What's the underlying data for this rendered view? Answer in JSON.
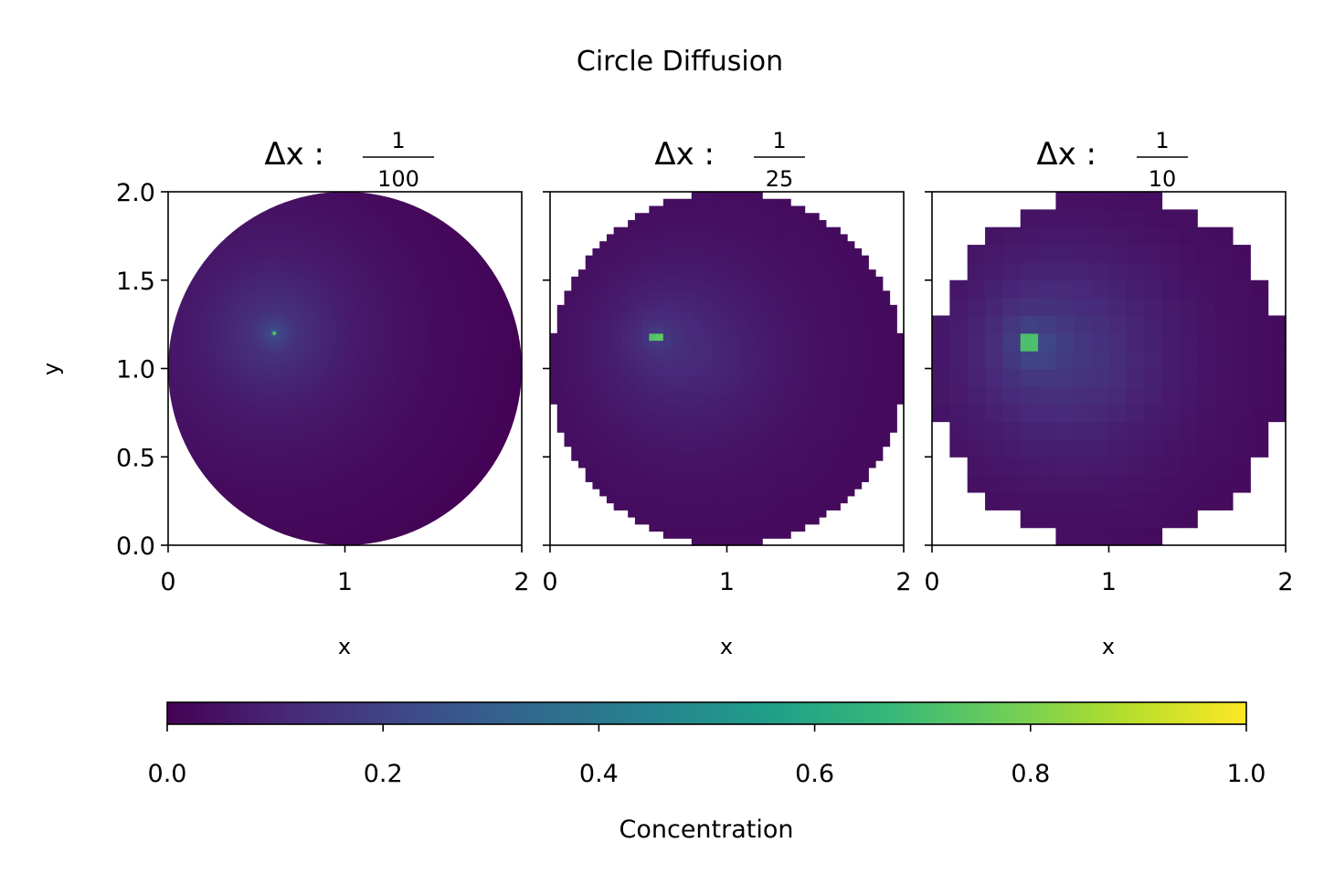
{
  "figure": {
    "title": "Circle Diffusion"
  },
  "chart_data": [
    {
      "type": "heatmap",
      "title": {
        "prefix": "Δx : ",
        "numerator": "1",
        "denominator": "100"
      },
      "dx": 0.01,
      "xlabel": "x",
      "ylabel": "y",
      "xlim": [
        0,
        2
      ],
      "ylim": [
        0,
        2
      ],
      "xticks": [
        "0",
        "1",
        "2"
      ],
      "yticks": [
        "0.0",
        "0.5",
        "1.0",
        "1.5",
        "2.0"
      ],
      "domain": {
        "shape": "circle",
        "center": [
          1.0,
          1.0
        ],
        "radius": 1.0
      },
      "source": {
        "x": 0.6,
        "y": 1.2,
        "value": 1.0
      }
    },
    {
      "type": "heatmap",
      "title": {
        "prefix": "Δx : ",
        "numerator": "1",
        "denominator": "25"
      },
      "dx": 0.04,
      "xlabel": "x",
      "ylabel": "",
      "xlim": [
        0,
        2
      ],
      "ylim": [
        0,
        2
      ],
      "xticks": [
        "0",
        "1",
        "2"
      ],
      "yticks": [],
      "domain": {
        "shape": "circle",
        "center": [
          1.0,
          1.0
        ],
        "radius": 1.0
      },
      "source": {
        "x": 0.6,
        "y": 1.18,
        "value": 1.0
      }
    },
    {
      "type": "heatmap",
      "title": {
        "prefix": "Δx : ",
        "numerator": "1",
        "denominator": "10"
      },
      "dx": 0.1,
      "xlabel": "x",
      "ylabel": "",
      "xlim": [
        0,
        2
      ],
      "ylim": [
        0,
        2
      ],
      "xticks": [
        "0",
        "1",
        "2"
      ],
      "yticks": [],
      "domain": {
        "shape": "circle",
        "center": [
          1.0,
          1.0
        ],
        "radius": 1.0
      },
      "source": {
        "x": 0.55,
        "y": 1.15,
        "value": 1.0
      }
    }
  ],
  "colorbar": {
    "label": "Concentration",
    "colormap": "viridis",
    "range": [
      0.0,
      1.0
    ],
    "ticks": [
      "0.0",
      "0.2",
      "0.4",
      "0.6",
      "0.8",
      "1.0"
    ],
    "stops": [
      "#440154",
      "#482878",
      "#3e4989",
      "#31688e",
      "#26828e",
      "#1f9e89",
      "#35b779",
      "#6ece58",
      "#b5de2b",
      "#fde725"
    ]
  }
}
